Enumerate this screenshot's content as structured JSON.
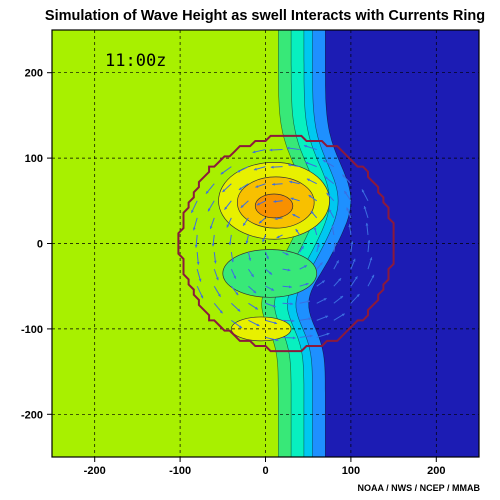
{
  "chart_data": {
    "type": "heatmap",
    "title": "Simulation of Wave Height as swell Interacts with Currents Ring",
    "time_label": "11:00z",
    "credit": "NOAA / NWS / NCEP / MMAB",
    "xlim": [
      -250,
      250
    ],
    "ylim": [
      -250,
      250
    ],
    "x_ticks": [
      -200,
      -100,
      0,
      100,
      200
    ],
    "y_ticks": [
      200,
      100,
      0,
      -100,
      -200
    ],
    "grid": true,
    "ring": {
      "center": [
        25,
        0
      ],
      "radius": 125
    },
    "colors": {
      "background": "#a8f000",
      "dark_blue": "#1c1cb4",
      "bands": [
        "#38e878",
        "#08f0c0",
        "#00c8f0",
        "#1e90ff"
      ],
      "yellow": "#e8f000",
      "gold": "#f8c000",
      "orange": "#f89000",
      "ring_color": "#8b1a3c",
      "arrow_color": "#3c6ee0"
    }
  }
}
